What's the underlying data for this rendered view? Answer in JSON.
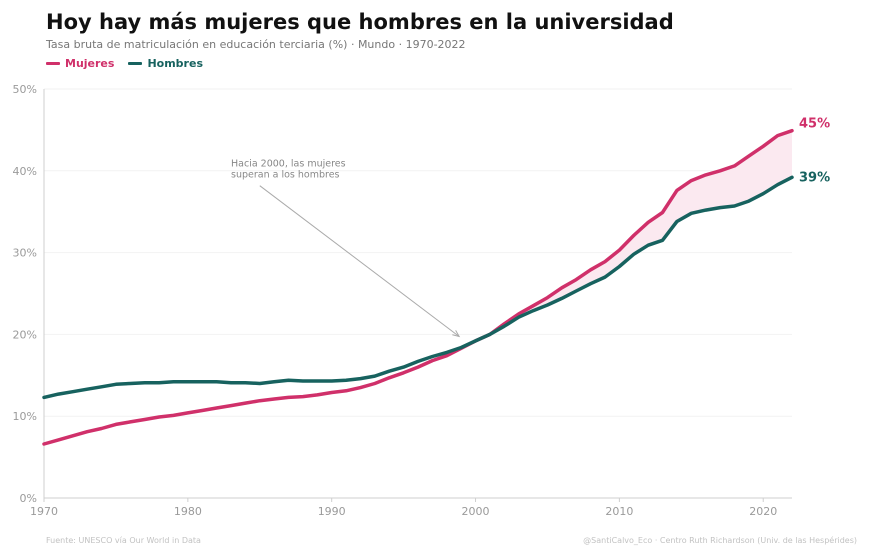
{
  "header": {
    "title": "Hoy hay más mujeres que hombres en la universidad",
    "subtitle": "Tasa bruta de matriculación en educación terciaria (%) · Mundo · 1970-2022"
  },
  "colors": {
    "women": "#d0306a",
    "men": "#17625f",
    "fill": "#fbe9f0",
    "grid": "#f2f2f2",
    "axis": "#cfcfcf",
    "tick_text": "#9a9a9a",
    "annotation": "#888888"
  },
  "footer": {
    "source": "Fuente: UNESCO vía Our World in Data",
    "credit": "@SantiCalvo_Eco · Centro Ruth Richardson (Univ. de las Hespérides)"
  },
  "chart_data": {
    "type": "line",
    "title": "Hoy hay más mujeres que hombres en la universidad",
    "xlabel": "",
    "ylabel": "",
    "xlim": [
      1970,
      2022
    ],
    "ylim": [
      0,
      50
    ],
    "grid": true,
    "legend": "top-left",
    "x_ticks": [
      1970,
      1980,
      1990,
      2000,
      2010,
      2020
    ],
    "y_ticks": [
      0,
      10,
      20,
      30,
      40,
      50
    ],
    "y_tick_labels": [
      "0%",
      "10%",
      "20%",
      "30%",
      "40%",
      "50%"
    ],
    "x": [
      1970,
      1971,
      1972,
      1973,
      1974,
      1975,
      1976,
      1977,
      1978,
      1979,
      1980,
      1981,
      1982,
      1983,
      1984,
      1985,
      1986,
      1987,
      1988,
      1989,
      1990,
      1991,
      1992,
      1993,
      1994,
      1995,
      1996,
      1997,
      1998,
      1999,
      2000,
      2001,
      2002,
      2003,
      2004,
      2005,
      2006,
      2007,
      2008,
      2009,
      2010,
      2011,
      2012,
      2013,
      2014,
      2015,
      2016,
      2017,
      2018,
      2019,
      2020,
      2021,
      2022
    ],
    "series": [
      {
        "name": "Mujeres",
        "end_label": "45%",
        "values": [
          6.6,
          7.1,
          7.6,
          8.1,
          8.5,
          9.0,
          9.3,
          9.6,
          9.9,
          10.1,
          10.4,
          10.7,
          11.0,
          11.3,
          11.6,
          11.9,
          12.1,
          12.3,
          12.4,
          12.6,
          12.9,
          13.1,
          13.5,
          14.0,
          14.7,
          15.3,
          16.0,
          16.8,
          17.4,
          18.3,
          19.2,
          20.0,
          21.3,
          22.5,
          23.5,
          24.5,
          25.7,
          26.7,
          27.9,
          28.9,
          30.3,
          32.1,
          33.7,
          34.9,
          37.6,
          38.8,
          39.5,
          40.0,
          40.6,
          41.8,
          43.0,
          44.3,
          44.9
        ]
      },
      {
        "name": "Hombres",
        "end_label": "39%",
        "values": [
          12.3,
          12.7,
          13.0,
          13.3,
          13.6,
          13.9,
          14.0,
          14.1,
          14.1,
          14.2,
          14.2,
          14.2,
          14.2,
          14.1,
          14.1,
          14.0,
          14.2,
          14.4,
          14.3,
          14.3,
          14.3,
          14.4,
          14.6,
          14.9,
          15.5,
          16.0,
          16.7,
          17.3,
          17.8,
          18.4,
          19.2,
          20.0,
          21.0,
          22.1,
          22.9,
          23.6,
          24.4,
          25.3,
          26.2,
          27.0,
          28.3,
          29.8,
          30.9,
          31.5,
          33.8,
          34.8,
          35.2,
          35.5,
          35.7,
          36.3,
          37.2,
          38.3,
          39.2
        ]
      }
    ],
    "annotations": [
      {
        "lines": [
          "Hacia 2000, las mujeres",
          "superan a los hombres"
        ],
        "target_x": 1999,
        "target_y": 19.0,
        "text_x": 1983,
        "text_y": 40.5
      }
    ]
  }
}
